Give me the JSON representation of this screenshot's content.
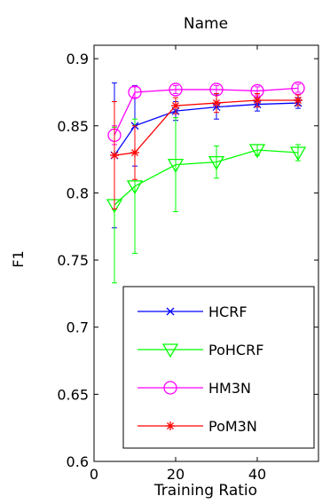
{
  "chart_data": {
    "type": "line",
    "title": "Name",
    "xlabel": "Training Ratio",
    "ylabel": "F1",
    "xlim": [
      0,
      55
    ],
    "ylim": [
      0.6,
      0.91
    ],
    "xticks": [
      0,
      20,
      40
    ],
    "xtick_labels": [
      "0",
      "20",
      "40"
    ],
    "yticks": [
      0.6,
      0.65,
      0.7,
      0.75,
      0.8,
      0.85,
      0.9
    ],
    "ytick_labels": [
      "0.6",
      "0.65",
      "0.7",
      "0.75",
      "0.8",
      "0.85",
      "0.9"
    ],
    "grid": false,
    "legend_position": "bottom-right",
    "x": [
      5,
      10,
      20,
      30,
      40,
      50
    ],
    "series": [
      {
        "name": "HCRF",
        "color": "#0000ff",
        "marker": "x",
        "values": [
          0.828,
          0.85,
          0.861,
          0.864,
          0.866,
          0.867
        ],
        "error": [
          0.054,
          0.03,
          0.007,
          0.009,
          0.005,
          0.004
        ]
      },
      {
        "name": "PoHCRF",
        "color": "#00ff00",
        "marker": "triangle-down",
        "values": [
          0.791,
          0.805,
          0.821,
          0.823,
          0.832,
          0.83
        ],
        "error": [
          0.058,
          0.05,
          0.035,
          0.012,
          0.004,
          0.006
        ]
      },
      {
        "name": "HM3N",
        "color": "#ff00ff",
        "marker": "circle",
        "values": [
          0.843,
          0.875,
          0.877,
          0.877,
          0.876,
          0.878
        ],
        "error": [
          0.007,
          0.004,
          0.003,
          0.003,
          0.003,
          0.003
        ]
      },
      {
        "name": "PoM3N",
        "color": "#ff0000",
        "marker": "star",
        "values": [
          0.828,
          0.83,
          0.865,
          0.867,
          0.869,
          0.869
        ],
        "error": [
          0.04,
          0.02,
          0.006,
          0.007,
          0.005,
          0.004
        ]
      }
    ]
  }
}
